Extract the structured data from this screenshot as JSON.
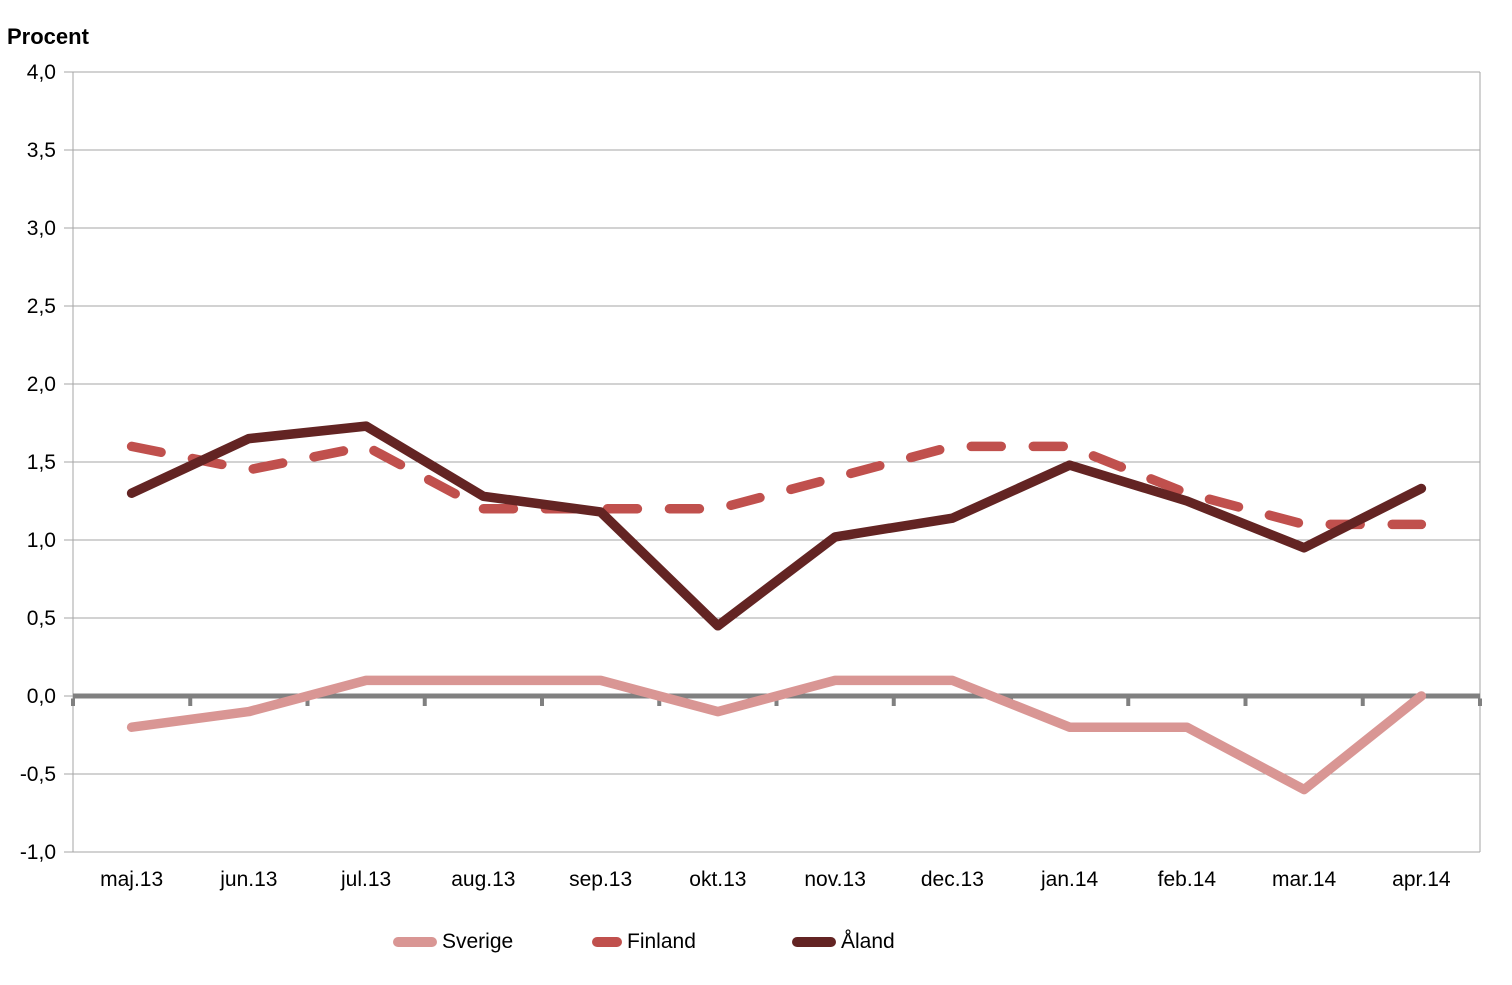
{
  "chart_data": {
    "type": "line",
    "title": "",
    "ylabel": "Procent",
    "xlabel": "",
    "categories": [
      "maj.13",
      "jun.13",
      "jul.13",
      "aug.13",
      "sep.13",
      "okt.13",
      "nov.13",
      "dec.13",
      "jan.14",
      "feb.14",
      "mar.14",
      "apr.14"
    ],
    "series": [
      {
        "name": "Sverige",
        "color": "#d99694",
        "style": "solid",
        "values": [
          -0.2,
          -0.1,
          0.1,
          0.1,
          0.1,
          -0.1,
          0.1,
          0.1,
          -0.2,
          -0.2,
          -0.6,
          0.0
        ]
      },
      {
        "name": "Finland",
        "color": "#c0504d",
        "style": "dashed",
        "values": [
          1.6,
          1.45,
          1.6,
          1.2,
          1.2,
          1.2,
          1.4,
          1.6,
          1.6,
          1.3,
          1.1,
          1.1
        ]
      },
      {
        "name": "Åland",
        "color": "#632423",
        "style": "solid",
        "values": [
          1.3,
          1.65,
          1.73,
          1.28,
          1.18,
          0.45,
          1.02,
          1.14,
          1.48,
          1.25,
          0.95,
          1.33
        ]
      }
    ],
    "ylim": [
      -1.0,
      4.0
    ],
    "ytick_step": 0.5,
    "decimal_separator": ",",
    "grid": "horizontal",
    "legend_position": "bottom",
    "colors": {
      "gridline": "#a6a6a6",
      "axis_line": "#a6a6a6",
      "zero_line": "#808080",
      "text": "#000000"
    }
  }
}
